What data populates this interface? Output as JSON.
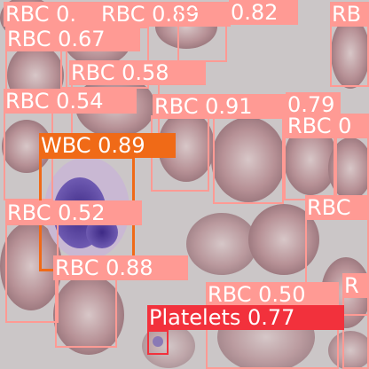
{
  "detections": [
    {
      "label": "RBC 0.",
      "cls": "rbc"
    },
    {
      "label": "RBC 0.89",
      "cls": "rbc"
    },
    {
      "label": "0.82",
      "cls": "rbc"
    },
    {
      "label": "RB",
      "cls": "rbc"
    },
    {
      "label": "RBC 0.67",
      "cls": "rbc"
    },
    {
      "label": "RBC 0.58",
      "cls": "rbc"
    },
    {
      "label": "RBC 0.54",
      "cls": "rbc"
    },
    {
      "label": "RBC 0.91",
      "cls": "rbc"
    },
    {
      "label": "0.79",
      "cls": "rbc"
    },
    {
      "label": "RBC 0",
      "cls": "rbc"
    },
    {
      "label": "WBC 0.89",
      "cls": "wbc"
    },
    {
      "label": "RBC 0.52",
      "cls": "rbc"
    },
    {
      "label": "RBC",
      "cls": "rbc"
    },
    {
      "label": "RBC 0.88",
      "cls": "rbc"
    },
    {
      "label": "RBC 0.50",
      "cls": "rbc"
    },
    {
      "label": "R",
      "cls": "rbc"
    },
    {
      "label": "Platelets 0.77",
      "cls": "plt"
    }
  ],
  "colors": {
    "rbc": "#ff9a94",
    "wbc": "#f06a17",
    "platelets": "#f2313c",
    "background": "#c9c3c4",
    "cell": "#b79196",
    "nucleus": "#5a3f9a"
  }
}
